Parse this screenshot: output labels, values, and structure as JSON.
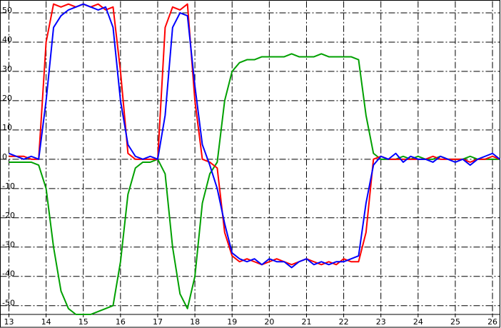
{
  "chart_data": {
    "type": "line",
    "x": [
      13.0,
      13.2,
      13.4,
      13.6,
      13.8,
      14.0,
      14.2,
      14.4,
      14.6,
      14.8,
      15.0,
      15.2,
      15.4,
      15.6,
      15.8,
      16.0,
      16.2,
      16.4,
      16.6,
      16.8,
      17.0,
      17.2,
      17.4,
      17.6,
      17.8,
      18.0,
      18.2,
      18.4,
      18.6,
      18.8,
      19.0,
      19.2,
      19.4,
      19.6,
      19.8,
      20.0,
      20.2,
      20.4,
      20.6,
      20.8,
      21.0,
      21.2,
      21.4,
      21.6,
      21.8,
      22.0,
      22.2,
      22.4,
      22.6,
      22.8,
      23.0,
      23.2,
      23.4,
      23.6,
      23.8,
      24.0,
      24.2,
      24.4,
      24.6,
      24.8,
      25.0,
      25.2,
      25.4,
      25.6,
      25.8,
      26.0,
      26.2
    ],
    "series": [
      {
        "color": "#00a000",
        "values": [
          -1,
          -1,
          -1,
          -1,
          -2,
          -10,
          -30,
          -45,
          -51,
          -53,
          -53,
          -53,
          -52,
          -51,
          -50,
          -35,
          -12,
          -3,
          -1,
          -1,
          0,
          -5,
          -30,
          -46,
          -51,
          -40,
          -15,
          -5,
          -1,
          20,
          30,
          33,
          34,
          34,
          35,
          35,
          35,
          35,
          36,
          35,
          35,
          35,
          36,
          35,
          35,
          35,
          35,
          34,
          15,
          2,
          0,
          0,
          0,
          1,
          0,
          1,
          0,
          0,
          1,
          0,
          0,
          0,
          1,
          0,
          0,
          0,
          0
        ]
      },
      {
        "color": "#ff0000",
        "values": [
          1,
          1,
          1,
          0,
          0,
          40,
          53,
          52,
          53,
          52,
          53,
          52,
          53,
          51,
          52,
          30,
          2,
          0,
          0,
          0,
          0,
          45,
          52,
          51,
          53,
          20,
          0,
          -1,
          -3,
          -25,
          -33,
          -35,
          -34,
          -35,
          -36,
          -35,
          -34,
          -35,
          -36,
          -35,
          -34,
          -35,
          -36,
          -35,
          -36,
          -34,
          -35,
          -35,
          -25,
          0,
          1,
          0,
          0,
          0,
          0,
          0,
          0,
          1,
          0,
          0,
          0,
          0,
          -1,
          0,
          0,
          1,
          0
        ]
      },
      {
        "color": "#0000ff",
        "values": [
          2,
          1,
          0,
          1,
          0,
          20,
          45,
          49,
          51,
          52,
          53,
          52,
          51,
          52,
          45,
          20,
          5,
          1,
          0,
          1,
          0,
          15,
          45,
          50,
          49,
          25,
          5,
          -2,
          -10,
          -22,
          -32,
          -34,
          -35,
          -34,
          -36,
          -34,
          -35,
          -35,
          -37,
          -35,
          -34,
          -36,
          -35,
          -36,
          -35,
          -35,
          -34,
          -33,
          -15,
          -2,
          1,
          0,
          2,
          -1,
          1,
          0,
          0,
          -1,
          1,
          0,
          -1,
          0,
          -2,
          0,
          1,
          2,
          0
        ]
      }
    ],
    "xlim": [
      12.77,
      26.2
    ],
    "ylim": [
      -53,
      54
    ],
    "xticks": [
      13,
      14,
      15,
      16,
      17,
      18,
      19,
      20,
      21,
      22,
      23,
      24,
      25,
      26
    ],
    "yticks": [
      -50,
      -40,
      -30,
      -20,
      -10,
      0,
      10,
      20,
      30,
      40,
      50
    ],
    "grid": true
  }
}
